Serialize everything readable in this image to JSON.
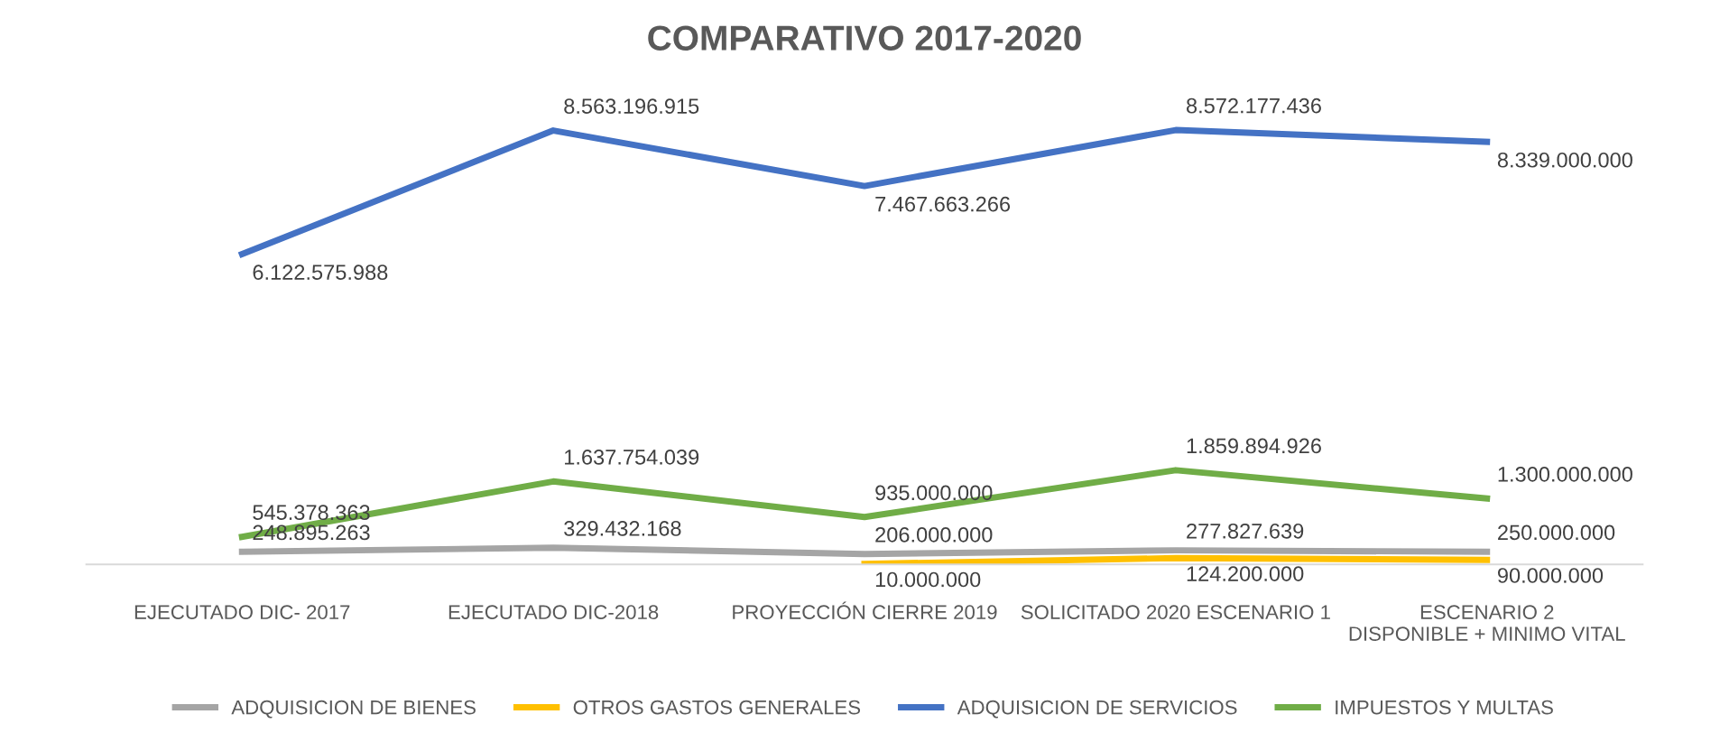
{
  "chart_data": {
    "type": "line",
    "title": "COMPARATIVO 2017-2020",
    "categories": [
      "EJECUTADO DIC- 2017",
      "EJECUTADO DIC-2018",
      "PROYECCIÓN CIERRE 2019",
      "SOLICITADO 2020 ESCENARIO 1",
      "ESCENARIO 2\nDISPONIBLE + MINIMO VITAL"
    ],
    "series": [
      {
        "name": "ADQUISICION DE BIENES",
        "color": "#a5a5a5",
        "values": [
          248895263,
          329432168,
          206000000,
          277827639,
          250000000
        ],
        "value_labels": [
          "248.895.263",
          "329.432.168",
          "206.000.000",
          "277.827.639",
          "250.000.000"
        ]
      },
      {
        "name": "OTROS GASTOS GENERALES",
        "color": "#ffc000",
        "values": [
          null,
          null,
          10000000,
          124200000,
          90000000
        ],
        "value_labels": [
          null,
          null,
          "10.000.000",
          "124.200.000",
          "90.000.000"
        ]
      },
      {
        "name": "ADQUISICION DE SERVICIOS",
        "color": "#4472c4",
        "values": [
          6122575988,
          8563196915,
          7467663266,
          8572177436,
          8339000000
        ],
        "value_labels": [
          "6.122.575.988",
          "8.563.196.915",
          "7.467.663.266",
          "8.572.177.436",
          "8.339.000.000"
        ]
      },
      {
        "name": "IMPUESTOS Y MULTAS",
        "color": "#70ad47",
        "values": [
          545378363,
          1637754039,
          935000000,
          1859894926,
          1300000000
        ],
        "value_labels": [
          "545.378.363",
          "1.637.754.039",
          "935.000.000",
          "1.859.894.926",
          "1.300.000.000"
        ]
      }
    ],
    "legend": "bottom",
    "grid": false,
    "marker": "none",
    "line_style": "solid"
  }
}
